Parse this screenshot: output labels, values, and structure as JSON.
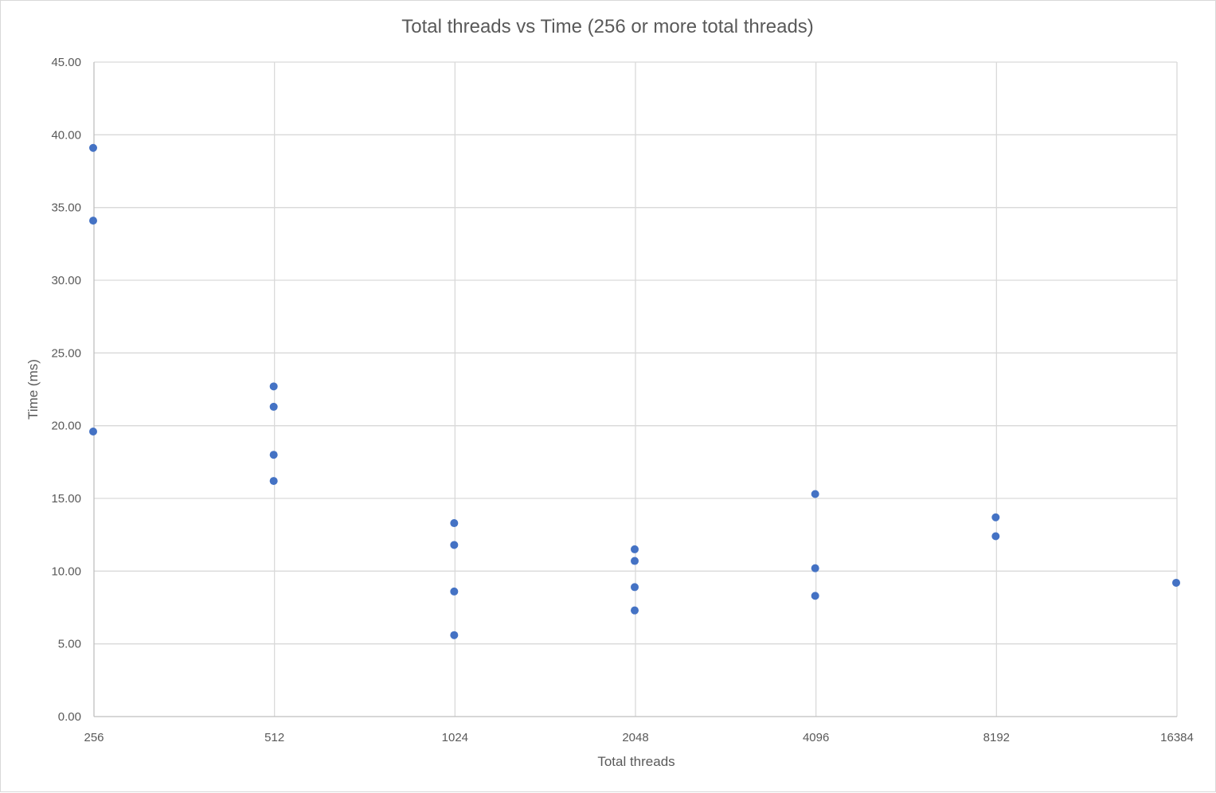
{
  "chart_data": {
    "type": "scatter",
    "title": "Total threads vs Time (256 or more total threads)",
    "xlabel": "Total threads",
    "ylabel": "Time (ms)",
    "x_scale": "log2",
    "x_ticks": [
      "256",
      "512",
      "1024",
      "2048",
      "4096",
      "8192",
      "16384"
    ],
    "y_ticks": [
      "0.00",
      "5.00",
      "10.00",
      "15.00",
      "20.00",
      "25.00",
      "30.00",
      "35.00",
      "40.00",
      "45.00"
    ],
    "xlim": [
      256,
      16384
    ],
    "ylim": [
      0,
      45
    ],
    "grid": true,
    "legend": "none",
    "marker_color": "#4472c4",
    "series": [
      {
        "points": [
          {
            "x": 256,
            "y": 39.1
          },
          {
            "x": 256,
            "y": 34.1
          },
          {
            "x": 256,
            "y": 19.6
          },
          {
            "x": 512,
            "y": 22.7
          },
          {
            "x": 512,
            "y": 21.3
          },
          {
            "x": 512,
            "y": 18.0
          },
          {
            "x": 512,
            "y": 16.2
          },
          {
            "x": 1024,
            "y": 13.3
          },
          {
            "x": 1024,
            "y": 11.8
          },
          {
            "x": 1024,
            "y": 8.6
          },
          {
            "x": 1024,
            "y": 5.6
          },
          {
            "x": 2048,
            "y": 11.5
          },
          {
            "x": 2048,
            "y": 10.7
          },
          {
            "x": 2048,
            "y": 8.9
          },
          {
            "x": 2048,
            "y": 7.3
          },
          {
            "x": 4096,
            "y": 15.3
          },
          {
            "x": 4096,
            "y": 10.2
          },
          {
            "x": 4096,
            "y": 8.3
          },
          {
            "x": 8192,
            "y": 13.7
          },
          {
            "x": 8192,
            "y": 12.4
          },
          {
            "x": 16384,
            "y": 9.2
          }
        ]
      }
    ]
  }
}
